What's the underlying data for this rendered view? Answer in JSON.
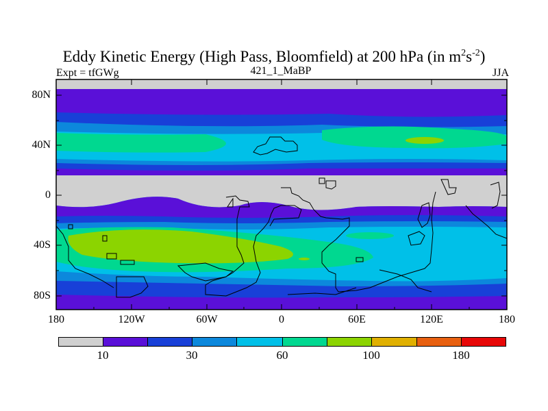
{
  "title": {
    "main": "Eddy Kinetic Energy (High Pass, Bloomfield) at 200 hPa (in m",
    "sup1": "2",
    "mid": "s",
    "sup2": "-2",
    "end": ")"
  },
  "subtitle": {
    "left": "Expt = tfGWg",
    "center": "421_1_MaBP",
    "right": "JJA"
  },
  "map": {
    "lat_labels": [
      "80N",
      "40N",
      "0",
      "40S",
      "80S"
    ],
    "lon_labels": [
      "180",
      "120W",
      "60W",
      "0",
      "60E",
      "120E",
      "180"
    ]
  },
  "legend": {
    "colors": [
      "#d0d0d0",
      "#5a10d8",
      "#1840d8",
      "#0c88dc",
      "#00c0e8",
      "#00d890",
      "#8cd400",
      "#e0b000",
      "#e86010",
      "#e80808"
    ],
    "labels": [
      "10",
      "30",
      "60",
      "100",
      "180"
    ]
  },
  "colors": {
    "gray": "#d0d0d0",
    "purple": "#5a10d8",
    "blue": "#1840d8",
    "mid_blue": "#0c88dc",
    "cyan": "#00c0e8",
    "green": "#00d890",
    "yellow_green": "#8cd400"
  }
}
